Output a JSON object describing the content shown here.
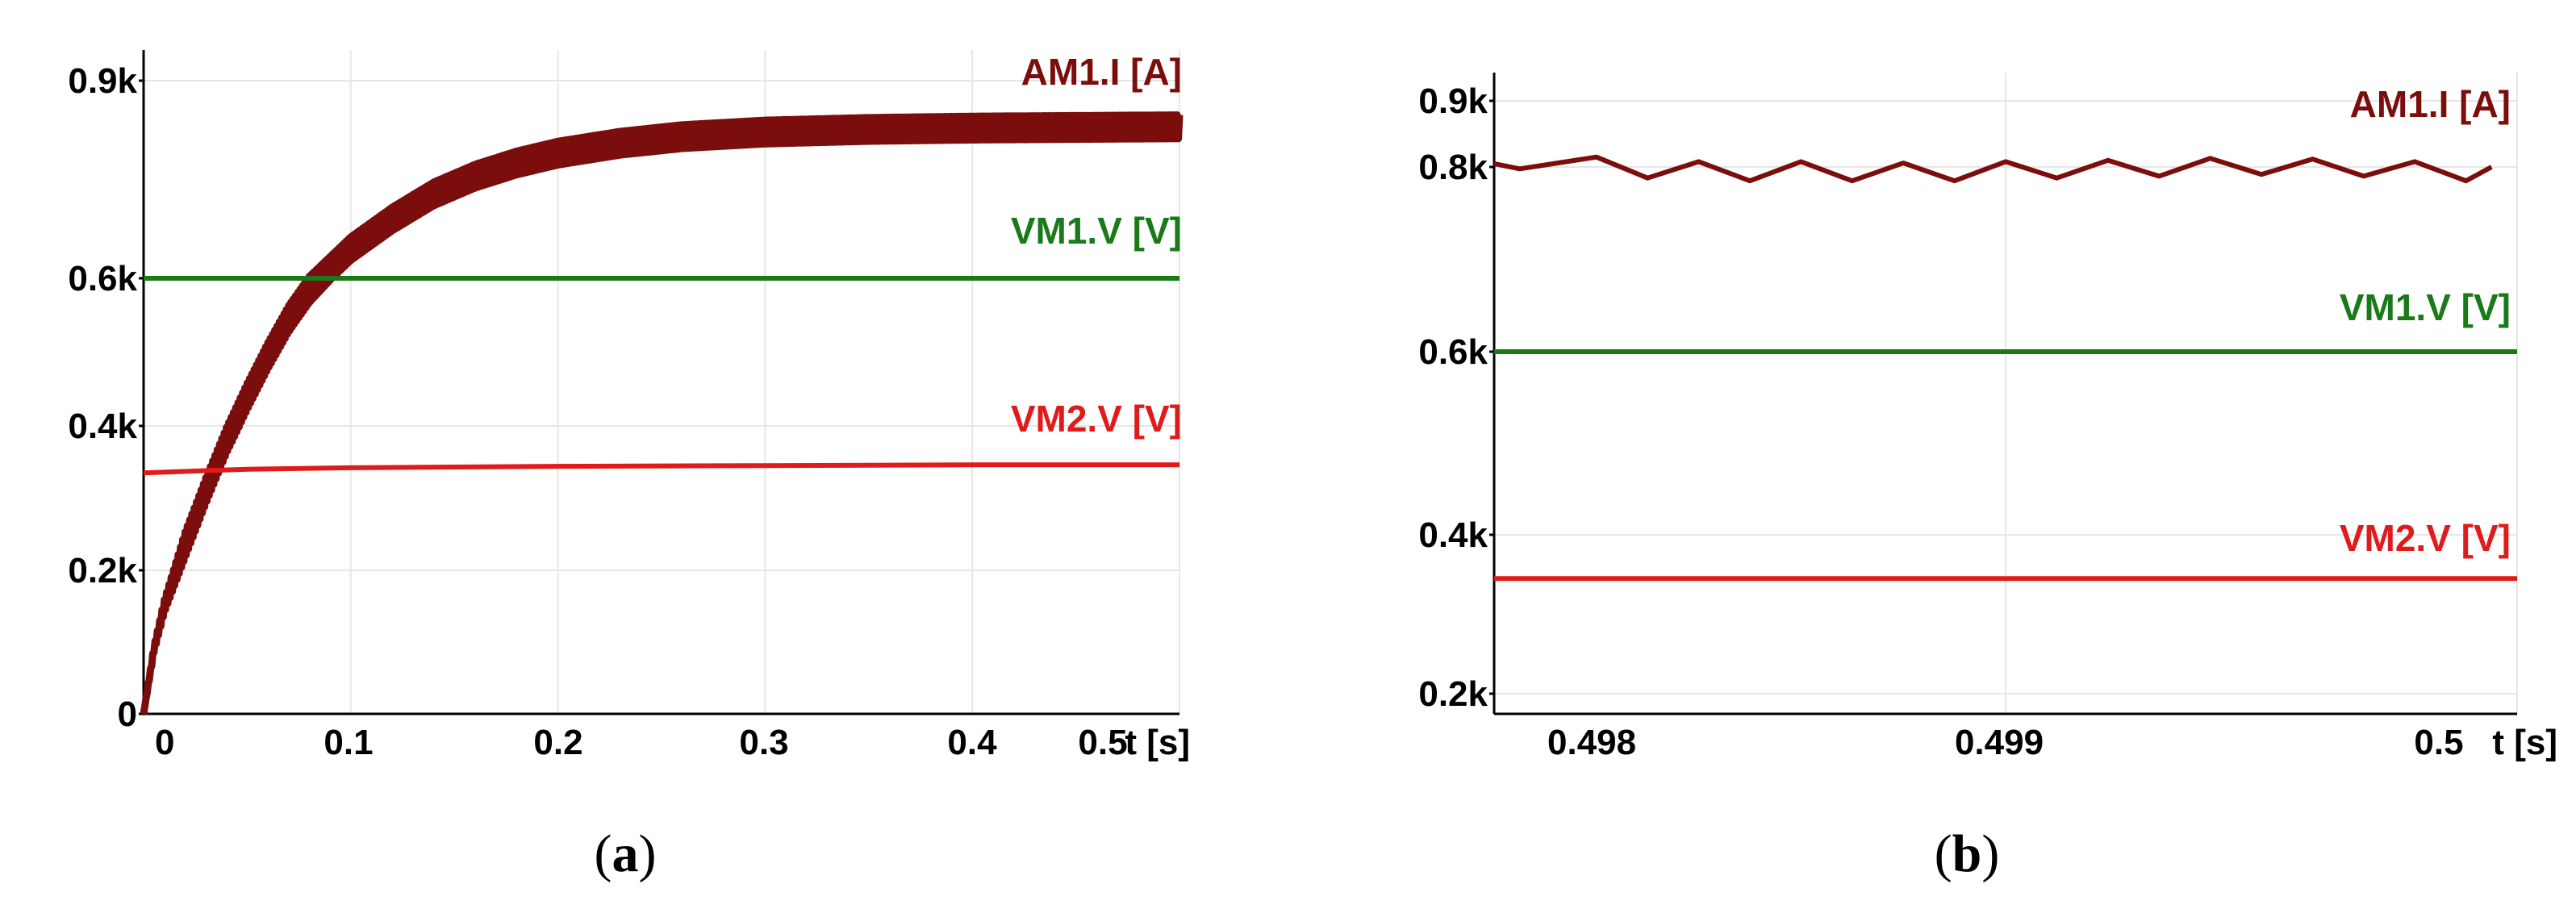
{
  "chart_data": [
    {
      "type": "line",
      "caption": "(a)",
      "x_unit_label": "t [s]",
      "xlim": [
        0,
        0.5
      ],
      "ylim": [
        0,
        900
      ],
      "x_ticks": [
        0,
        0.1,
        0.2,
        0.3,
        0.4,
        0.5
      ],
      "x_tick_labels": [
        "0",
        "0.1",
        "0.2",
        "0.3",
        "0.4",
        "0.5"
      ],
      "y_ticks": [
        0,
        200,
        400,
        600,
        900
      ],
      "y_tick_labels": [
        "0",
        "0.2k",
        "0.4k",
        "0.6k",
        "0.9k"
      ],
      "grid": true,
      "series": [
        {
          "name": "AM1.I [A]",
          "color": "#7b0d0d",
          "ripple": 18,
          "x": [
            0,
            0.005,
            0.01,
            0.02,
            0.03,
            0.04,
            0.05,
            0.06,
            0.07,
            0.08,
            0.09,
            0.1,
            0.12,
            0.14,
            0.16,
            0.18,
            0.2,
            0.23,
            0.26,
            0.3,
            0.35,
            0.4,
            0.45,
            0.5
          ],
          "y": [
            0,
            90,
            150,
            235,
            310,
            380,
            440,
            495,
            545,
            585,
            615,
            645,
            690,
            728,
            755,
            775,
            790,
            805,
            815,
            822,
            826,
            828,
            829,
            830
          ]
        },
        {
          "name": "VM1.V [V]",
          "color": "#1a7a1a",
          "x": [
            0,
            0.5
          ],
          "y": [
            600,
            600
          ]
        },
        {
          "name": "VM2.V [V]",
          "color": "#e01b1b",
          "x": [
            0,
            0.05,
            0.1,
            0.2,
            0.3,
            0.4,
            0.5
          ],
          "y": [
            335,
            340,
            342,
            344,
            345,
            346,
            346
          ]
        }
      ]
    },
    {
      "type": "line",
      "caption": "(b)",
      "x_unit_label": "t [s]",
      "xlim": [
        0.498,
        0.5
      ],
      "ylim": [
        200,
        900
      ],
      "x_ticks": [
        0.498,
        0.499,
        0.5
      ],
      "x_tick_labels": [
        "0.498",
        "0.499",
        "0.5"
      ],
      "y_ticks": [
        200,
        400,
        600,
        800,
        900
      ],
      "y_tick_labels": [
        "0.2k",
        "0.4k",
        "0.6k",
        "0.8k",
        "0.9k"
      ],
      "grid": true,
      "series": [
        {
          "name": "AM1.I [A]",
          "color": "#7b0d0d",
          "x": [
            0.498,
            0.49805,
            0.4982,
            0.4983,
            0.4984,
            0.4985,
            0.4986,
            0.4987,
            0.4988,
            0.4989,
            0.499,
            0.4991,
            0.4992,
            0.4993,
            0.4994,
            0.4995,
            0.4996,
            0.4997,
            0.4998,
            0.4999,
            0.49995
          ],
          "y": [
            805,
            798,
            815,
            788,
            808,
            785,
            808,
            785,
            806,
            785,
            808,
            788,
            810,
            790,
            813,
            792,
            812,
            790,
            808,
            785,
            800
          ]
        },
        {
          "name": "VM1.V [V]",
          "color": "#1a7a1a",
          "x": [
            0.498,
            0.5
          ],
          "y": [
            600,
            600
          ]
        },
        {
          "name": "VM2.V [V]",
          "color": "#e01b1b",
          "x": [
            0.498,
            0.5
          ],
          "y": [
            345,
            345
          ]
        }
      ]
    }
  ]
}
